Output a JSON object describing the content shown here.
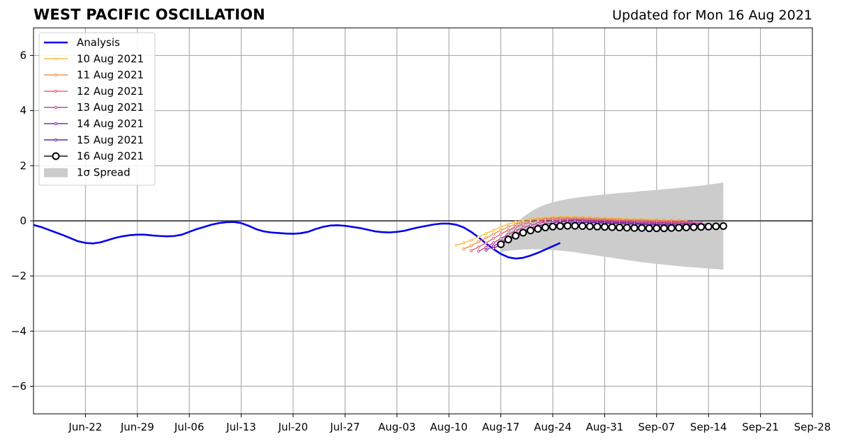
{
  "title": "WEST PACIFIC OSCILLATION",
  "updated": "Updated for Mon 16 Aug 2021",
  "chart_data": {
    "type": "line",
    "title": "WEST PACIFIC OSCILLATION",
    "xlabel": "",
    "ylabel": "",
    "x_range": [
      "2021-06-15",
      "2021-09-28"
    ],
    "ylim": [
      -7,
      7
    ],
    "x_ticks": [
      {
        "date": "2021-06-22",
        "label": "Jun-22"
      },
      {
        "date": "2021-06-29",
        "label": "Jun-29"
      },
      {
        "date": "2021-07-06",
        "label": "Jul-06"
      },
      {
        "date": "2021-07-13",
        "label": "Jul-13"
      },
      {
        "date": "2021-07-20",
        "label": "Jul-20"
      },
      {
        "date": "2021-07-27",
        "label": "Jul-27"
      },
      {
        "date": "2021-08-03",
        "label": "Aug-03"
      },
      {
        "date": "2021-08-10",
        "label": "Aug-10"
      },
      {
        "date": "2021-08-17",
        "label": "Aug-17"
      },
      {
        "date": "2021-08-24",
        "label": "Aug-24"
      },
      {
        "date": "2021-08-31",
        "label": "Aug-31"
      },
      {
        "date": "2021-09-07",
        "label": "Sep-07"
      },
      {
        "date": "2021-09-14",
        "label": "Sep-14"
      },
      {
        "date": "2021-09-21",
        "label": "Sep-21"
      },
      {
        "date": "2021-09-28",
        "label": "Sep-28"
      }
    ],
    "y_ticks": [
      {
        "value": 6,
        "label": "6"
      },
      {
        "value": 4,
        "label": "4"
      },
      {
        "value": 2,
        "label": "2"
      },
      {
        "value": 0,
        "label": "0"
      },
      {
        "value": -2,
        "label": "−2"
      },
      {
        "value": -4,
        "label": "−4"
      },
      {
        "value": -6,
        "label": "−6"
      }
    ],
    "grid": true,
    "legend_position": "top-left",
    "analysis": {
      "name": "Analysis",
      "color": "#0000ee",
      "start": "2021-06-15",
      "values": [
        -0.15,
        -0.22,
        -0.32,
        -0.42,
        -0.52,
        -0.63,
        -0.74,
        -0.8,
        -0.82,
        -0.78,
        -0.7,
        -0.62,
        -0.56,
        -0.52,
        -0.5,
        -0.5,
        -0.53,
        -0.55,
        -0.56,
        -0.55,
        -0.5,
        -0.4,
        -0.3,
        -0.22,
        -0.14,
        -0.08,
        -0.05,
        -0.04,
        -0.08,
        -0.18,
        -0.3,
        -0.38,
        -0.42,
        -0.44,
        -0.46,
        -0.47,
        -0.45,
        -0.4,
        -0.3,
        -0.22,
        -0.17,
        -0.16,
        -0.18,
        -0.22,
        -0.26,
        -0.32,
        -0.38,
        -0.41,
        -0.42,
        -0.4,
        -0.36,
        -0.29,
        -0.23,
        -0.18,
        -0.13,
        -0.1,
        -0.1,
        -0.14,
        -0.24,
        -0.4,
        -0.6,
        -0.82,
        -1.02,
        -1.2,
        -1.32,
        -1.37,
        -1.34,
        -1.26,
        -1.16,
        -1.04,
        -0.92,
        -0.8
      ]
    },
    "forecasts": [
      {
        "name": "10 Aug 2021",
        "color": "#f9b92c",
        "start": "2021-08-11",
        "values": [
          -0.88,
          -0.8,
          -0.7,
          -0.58,
          -0.46,
          -0.34,
          -0.22,
          -0.12,
          -0.04,
          0.02,
          0.06,
          0.09,
          0.11,
          0.13,
          0.14,
          0.14,
          0.14,
          0.13,
          0.12,
          0.11,
          0.1,
          0.09,
          0.08,
          0.07,
          0.06,
          0.05,
          0.05,
          0.04,
          0.04,
          0.03,
          0.03
        ]
      },
      {
        "name": "11 Aug 2021",
        "color": "#f08a4a",
        "start": "2021-08-12",
        "values": [
          -1.02,
          -0.9,
          -0.76,
          -0.62,
          -0.48,
          -0.34,
          -0.22,
          -0.12,
          -0.04,
          0.02,
          0.06,
          0.08,
          0.1,
          0.11,
          0.11,
          0.11,
          0.1,
          0.09,
          0.08,
          0.07,
          0.06,
          0.05,
          0.04,
          0.03,
          0.03,
          0.02,
          0.02,
          0.01,
          0.01,
          0.0,
          0.0
        ]
      },
      {
        "name": "12 Aug 2021",
        "color": "#dd5c6b",
        "start": "2021-08-13",
        "values": [
          -1.08,
          -0.95,
          -0.8,
          -0.64,
          -0.48,
          -0.34,
          -0.22,
          -0.12,
          -0.05,
          0.0,
          0.04,
          0.06,
          0.07,
          0.07,
          0.07,
          0.06,
          0.05,
          0.04,
          0.03,
          0.02,
          0.01,
          0.0,
          -0.01,
          -0.01,
          -0.02,
          -0.02,
          -0.03,
          -0.03,
          -0.04,
          -0.04,
          -0.04
        ]
      },
      {
        "name": "13 Aug 2021",
        "color": "#bf3a93",
        "start": "2021-08-14",
        "values": [
          -1.1,
          -0.96,
          -0.8,
          -0.64,
          -0.49,
          -0.36,
          -0.25,
          -0.16,
          -0.09,
          -0.04,
          0.0,
          0.02,
          0.03,
          0.03,
          0.02,
          0.01,
          0.0,
          -0.01,
          -0.02,
          -0.03,
          -0.04,
          -0.05,
          -0.05,
          -0.06,
          -0.06,
          -0.07,
          -0.07,
          -0.07,
          -0.08,
          -0.08,
          -0.08
        ]
      },
      {
        "name": "14 Aug 2021",
        "color": "#8e22a8",
        "start": "2021-08-15",
        "values": [
          -1.06,
          -0.92,
          -0.77,
          -0.62,
          -0.48,
          -0.36,
          -0.26,
          -0.18,
          -0.12,
          -0.07,
          -0.04,
          -0.02,
          -0.01,
          -0.01,
          -0.02,
          -0.03,
          -0.04,
          -0.05,
          -0.06,
          -0.07,
          -0.08,
          -0.09,
          -0.09,
          -0.1,
          -0.1,
          -0.11,
          -0.11,
          -0.11,
          -0.12,
          -0.12,
          -0.12
        ]
      },
      {
        "name": "15 Aug 2021",
        "color": "#5a139d",
        "start": "2021-08-16",
        "values": [
          -1.0,
          -0.85,
          -0.7,
          -0.56,
          -0.44,
          -0.34,
          -0.26,
          -0.2,
          -0.15,
          -0.11,
          -0.08,
          -0.07,
          -0.06,
          -0.06,
          -0.07,
          -0.08,
          -0.09,
          -0.1,
          -0.11,
          -0.12,
          -0.13,
          -0.14,
          -0.14,
          -0.15,
          -0.15,
          -0.16,
          -0.16,
          -0.16,
          -0.17,
          -0.17,
          -0.17
        ]
      },
      {
        "name": "16 Aug 2021",
        "color": "#000000",
        "start": "2021-08-17",
        "values": [
          -0.85,
          -0.68,
          -0.54,
          -0.43,
          -0.35,
          -0.29,
          -0.24,
          -0.21,
          -0.19,
          -0.18,
          -0.18,
          -0.19,
          -0.2,
          -0.21,
          -0.22,
          -0.23,
          -0.24,
          -0.25,
          -0.26,
          -0.26,
          -0.27,
          -0.27,
          -0.27,
          -0.26,
          -0.25,
          -0.24,
          -0.23,
          -0.22,
          -0.21,
          -0.2,
          -0.19
        ]
      }
    ],
    "spread": {
      "name": "1σ Spread",
      "color": "#cccccc",
      "start": "2021-08-17",
      "upper": [
        -0.68,
        -0.38,
        -0.1,
        0.14,
        0.33,
        0.48,
        0.59,
        0.67,
        0.74,
        0.79,
        0.83,
        0.87,
        0.9,
        0.93,
        0.96,
        0.98,
        1.01,
        1.03,
        1.05,
        1.08,
        1.1,
        1.12,
        1.15,
        1.17,
        1.2,
        1.22,
        1.25,
        1.28,
        1.31,
        1.35,
        1.39
      ],
      "lower": [
        -1.12,
        -1.08,
        -1.06,
        -1.04,
        -1.03,
        -1.03,
        -1.04,
        -1.06,
        -1.08,
        -1.11,
        -1.14,
        -1.18,
        -1.22,
        -1.26,
        -1.3,
        -1.34,
        -1.38,
        -1.42,
        -1.46,
        -1.5,
        -1.53,
        -1.56,
        -1.59,
        -1.62,
        -1.64,
        -1.67,
        -1.69,
        -1.71,
        -1.73,
        -1.75,
        -1.77
      ]
    },
    "legend": [
      "Analysis",
      "10 Aug 2021",
      "11 Aug 2021",
      "12 Aug 2021",
      "13 Aug 2021",
      "14 Aug 2021",
      "15 Aug 2021",
      "16 Aug 2021",
      "1σ Spread"
    ]
  }
}
